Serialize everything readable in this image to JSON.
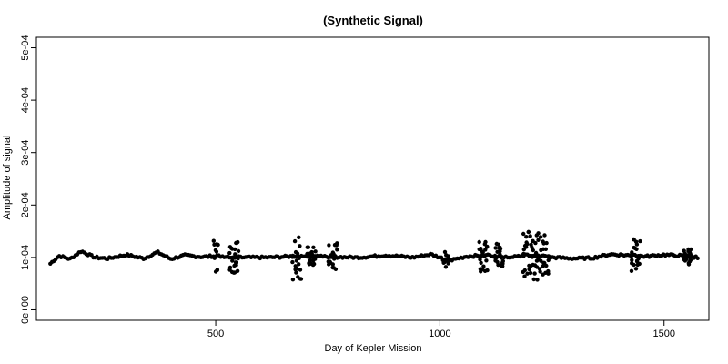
{
  "chart_data": {
    "type": "scatter",
    "title": "(Synthetic Signal)",
    "xlabel": "Day of Kepler Mission",
    "ylabel": "Amplitude of signal",
    "xlim": [
      100,
      1600
    ],
    "ylim": [
      -2e-05,
      0.00052
    ],
    "x_ticks": [
      500,
      1000,
      1500
    ],
    "x_tick_labels": [
      "500",
      "1000",
      "1500"
    ],
    "y_ticks": [
      0,
      0.0001,
      0.0002,
      0.0003,
      0.0004,
      0.0005
    ],
    "y_tick_labels": [
      "0e+00",
      "1e-04",
      "2e-04",
      "3e-04",
      "4e-04",
      "5e-04"
    ],
    "grid": false,
    "legend": "none",
    "marker_color": "#000000",
    "series": [
      {
        "x_start": 131,
        "x_end": 1577,
        "x_step": 4,
        "baseline": 0.0001,
        "baseline_points": [
          [
            131,
            8.8e-05
          ],
          [
            150,
            0.000103
          ],
          [
            175,
            9.7e-05
          ],
          [
            200,
            0.000112
          ],
          [
            230,
            0.0001
          ],
          [
            260,
            9.8e-05
          ],
          [
            300,
            0.000105
          ],
          [
            340,
            9.8e-05
          ],
          [
            370,
            0.00011
          ],
          [
            400,
            9.7e-05
          ],
          [
            430,
            0.000104
          ],
          [
            470,
            0.000101
          ],
          [
            500,
            0.000103
          ],
          [
            560,
            0.0001
          ],
          [
            620,
            0.0001
          ],
          [
            690,
            0.000103
          ],
          [
            760,
            0.000101
          ],
          [
            820,
            0.0001
          ],
          [
            880,
            0.000104
          ],
          [
            940,
            0.0001
          ],
          [
            980,
            0.000106
          ],
          [
            1020,
            9.4e-05
          ],
          [
            1060,
            0.000102
          ],
          [
            1100,
            0.000104
          ],
          [
            1150,
            0.000101
          ],
          [
            1200,
            0.000105
          ],
          [
            1250,
            0.0001
          ],
          [
            1300,
            9.8e-05
          ],
          [
            1340,
            9.9e-05
          ],
          [
            1380,
            0.000106
          ],
          [
            1420,
            0.000104
          ],
          [
            1460,
            0.000102
          ],
          [
            1500,
            0.000105
          ],
          [
            1540,
            0.000103
          ],
          [
            1577,
            0.0001
          ]
        ],
        "noisy_intervals": [
          [
            495,
            505,
            3e-05
          ],
          [
            530,
            550,
            3.5e-05
          ],
          [
            668,
            690,
            4.5e-05
          ],
          [
            700,
            720,
            2e-05
          ],
          [
            750,
            770,
            2.5e-05
          ],
          [
            1005,
            1015,
            1.5e-05
          ],
          [
            1085,
            1105,
            3e-05
          ],
          [
            1120,
            1140,
            2.5e-05
          ],
          [
            1180,
            1240,
            4.5e-05
          ],
          [
            1425,
            1445,
            3e-05
          ],
          [
            1540,
            1560,
            1.5e-05
          ]
        ]
      }
    ]
  }
}
